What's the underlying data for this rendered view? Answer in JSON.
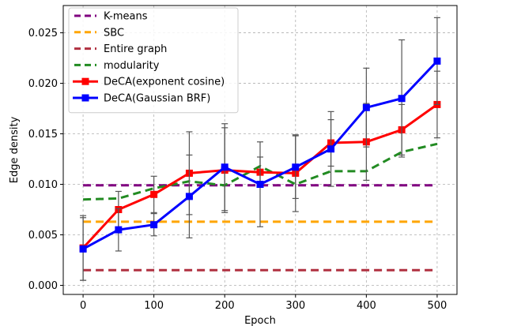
{
  "chart_data": {
    "type": "line",
    "title": "",
    "xlabel": "Epoch",
    "ylabel": "Edge density",
    "xlim": [
      -28,
      528
    ],
    "ylim": [
      -0.0009,
      0.0277
    ],
    "xticks": [
      0,
      100,
      200,
      300,
      400,
      500
    ],
    "xtick_labels": [
      "0",
      "100",
      "200",
      "300",
      "400",
      "500"
    ],
    "yticks": [
      0.0,
      0.005,
      0.01,
      0.015,
      0.02,
      0.025
    ],
    "ytick_labels": [
      "0.000",
      "0.005",
      "0.010",
      "0.015",
      "0.020",
      "0.025"
    ],
    "grid": true,
    "legend_position": "upper-left",
    "series": [
      {
        "name": "K-means",
        "color": "#800080",
        "style": "dashed",
        "x": [
          0,
          500
        ],
        "y": [
          0.0099,
          0.0099
        ]
      },
      {
        "name": "SBC",
        "color": "#FFA500",
        "style": "dashed",
        "x": [
          0,
          500
        ],
        "y": [
          0.0063,
          0.0063
        ]
      },
      {
        "name": "Entire graph",
        "color": "#B03040",
        "style": "dashed",
        "x": [
          0,
          500
        ],
        "y": [
          0.0015,
          0.0015
        ]
      },
      {
        "name": "modularity",
        "color": "#228B22",
        "style": "dashed",
        "x": [
          0,
          50,
          100,
          150,
          200,
          250,
          300,
          350,
          400,
          450,
          500
        ],
        "y": [
          0.0085,
          0.0086,
          0.0096,
          0.0103,
          0.0099,
          0.0118,
          0.01,
          0.0113,
          0.0113,
          0.0132,
          0.014
        ]
      },
      {
        "name": "DeCA(exponent cosine)",
        "color": "#FF0000",
        "style": "solid-square",
        "x": [
          0,
          50,
          100,
          150,
          200,
          250,
          300,
          350,
          400,
          450,
          500
        ],
        "y": [
          0.0037,
          0.0075,
          0.009,
          0.0111,
          0.0114,
          0.0112,
          0.0111,
          0.0141,
          0.0142,
          0.0154,
          0.0179
        ],
        "err": [
          0.0032,
          0.0018,
          0.0018,
          0.0041,
          0.0042,
          0.0015,
          0.0038,
          0.0023,
          0.0038,
          0.0025,
          0.0033
        ]
      },
      {
        "name": "DeCA(Gaussian BRF)",
        "color": "#0000FF",
        "style": "solid-square",
        "x": [
          0,
          50,
          100,
          150,
          200,
          250,
          300,
          350,
          400,
          450,
          500
        ],
        "y": [
          0.0036,
          0.0055,
          0.006,
          0.0088,
          0.0117,
          0.01,
          0.0117,
          0.0135,
          0.0176,
          0.0185,
          0.0222
        ],
        "err": [
          0.0031,
          0.0021,
          0.0011,
          0.0041,
          0.0043,
          0.0042,
          0.0031,
          0.0037,
          0.0039,
          0.0058,
          0.0043
        ]
      }
    ]
  }
}
